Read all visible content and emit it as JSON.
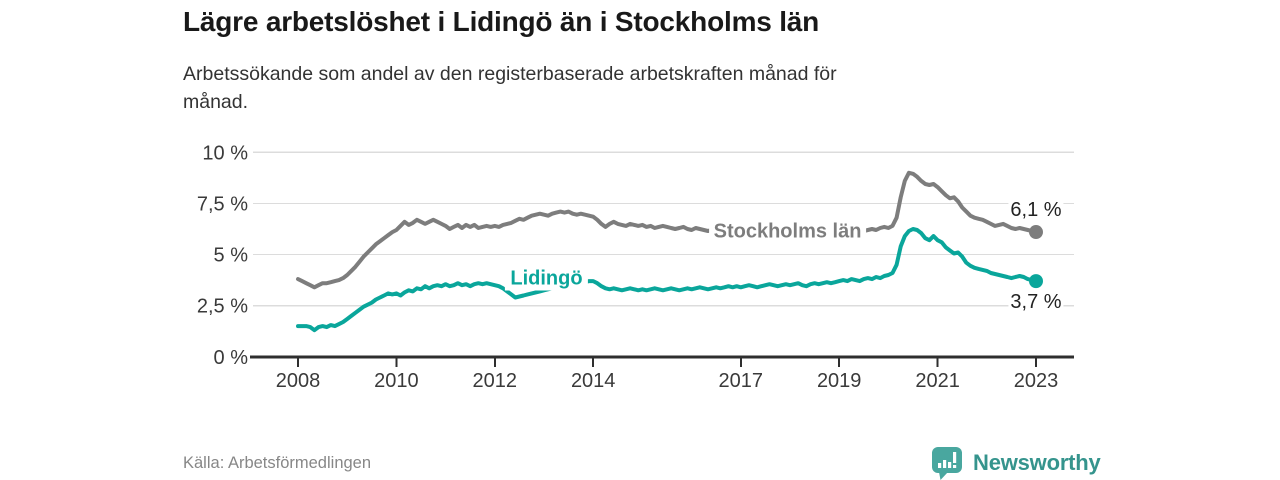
{
  "header": {
    "title": "Lägre arbetslöshet i Lidingö än i Stockholms län",
    "subtitle_lines": [
      "Arbetssökande som andel av den registerbaserade arbetskraften månad för",
      "månad."
    ]
  },
  "footer": {
    "source": "Källa: Arbetsförmedlingen",
    "brand_name": "Newsworthy",
    "brand_icon": "bar-chart-speech-bubble-icon"
  },
  "colors": {
    "lidingo_line": "#0aa69b",
    "stockholm_line": "#7d7d7d",
    "grid": "#dcdcdc",
    "axis": "#2f2f2f",
    "tick_text": "#3a3a3a",
    "annotation_text": "#222222",
    "logo_teal": "#49a79f",
    "wordmark_teal": "#35948d"
  },
  "chart_data": {
    "type": "line",
    "x_unit": "month",
    "x_start_year": 2008,
    "x_end_year": 2023,
    "xticks": [
      2008,
      2010,
      2012,
      2014,
      2017,
      2019,
      2021,
      2023
    ],
    "ytick_values": [
      0,
      2.5,
      5,
      7.5,
      10
    ],
    "ytick_labels": [
      "0 %",
      "2,5 %",
      "5 %",
      "7,5 %",
      "10 %"
    ],
    "ylim": [
      0,
      10
    ],
    "xlim": [
      2007.0,
      2023.8
    ],
    "grid": "horizontal",
    "legend_position": "inline-labels",
    "series": [
      {
        "name": "Stockholms län",
        "color": "#7d7d7d",
        "end_label": "6,1 %",
        "end_label_position": "above",
        "name_label_anchor": {
          "year": 2017.95,
          "value": 6.12
        },
        "values": [
          3.8,
          3.7,
          3.6,
          3.5,
          3.4,
          3.5,
          3.6,
          3.6,
          3.65,
          3.7,
          3.75,
          3.85,
          4.0,
          4.2,
          4.4,
          4.65,
          4.9,
          5.1,
          5.3,
          5.5,
          5.65,
          5.8,
          5.95,
          6.1,
          6.2,
          6.4,
          6.6,
          6.45,
          6.55,
          6.7,
          6.6,
          6.5,
          6.6,
          6.7,
          6.6,
          6.5,
          6.4,
          6.25,
          6.35,
          6.45,
          6.3,
          6.45,
          6.35,
          6.45,
          6.3,
          6.35,
          6.4,
          6.35,
          6.4,
          6.35,
          6.45,
          6.5,
          6.55,
          6.65,
          6.75,
          6.7,
          6.8,
          6.9,
          6.95,
          7.0,
          6.95,
          6.9,
          7.0,
          7.05,
          7.1,
          7.05,
          7.1,
          7.0,
          6.95,
          7.0,
          6.95,
          6.9,
          6.85,
          6.7,
          6.5,
          6.35,
          6.5,
          6.6,
          6.5,
          6.45,
          6.4,
          6.5,
          6.45,
          6.4,
          6.45,
          6.35,
          6.4,
          6.3,
          6.35,
          6.4,
          6.35,
          6.3,
          6.25,
          6.3,
          6.35,
          6.25,
          6.2,
          6.3,
          6.25,
          6.2,
          6.15,
          6.2,
          6.25,
          6.15,
          6.1,
          6.15,
          6.2,
          6.15,
          6.1,
          6.15,
          6.1,
          6.05,
          6.1,
          6.15,
          6.1,
          6.05,
          6.1,
          6.1,
          6.05,
          6.1,
          6.05,
          6.0,
          6.05,
          6.1,
          6.05,
          6.0,
          6.05,
          6.1,
          6.05,
          6.1,
          6.1,
          6.15,
          6.1,
          6.1,
          6.15,
          6.2,
          6.15,
          6.1,
          6.15,
          6.2,
          6.25,
          6.2,
          6.3,
          6.35,
          6.3,
          6.4,
          6.8,
          7.8,
          8.6,
          9.0,
          8.95,
          8.8,
          8.6,
          8.45,
          8.4,
          8.45,
          8.3,
          8.1,
          7.9,
          7.75,
          7.8,
          7.6,
          7.3,
          7.1,
          6.9,
          6.8,
          6.75,
          6.7,
          6.6,
          6.5,
          6.4,
          6.45,
          6.5,
          6.4,
          6.3,
          6.25,
          6.3,
          6.25,
          6.2,
          6.15,
          6.1
        ]
      },
      {
        "name": "Lidingö",
        "color": "#0aa69b",
        "end_label": "3,7 %",
        "end_label_position": "below",
        "name_label_anchor": {
          "year": 2013.05,
          "value": 3.82
        },
        "values": [
          1.5,
          1.5,
          1.5,
          1.45,
          1.3,
          1.45,
          1.5,
          1.45,
          1.55,
          1.5,
          1.6,
          1.7,
          1.85,
          2.0,
          2.15,
          2.3,
          2.45,
          2.55,
          2.65,
          2.8,
          2.9,
          3.0,
          3.1,
          3.05,
          3.1,
          3.0,
          3.15,
          3.25,
          3.2,
          3.35,
          3.3,
          3.45,
          3.35,
          3.45,
          3.5,
          3.45,
          3.55,
          3.45,
          3.5,
          3.6,
          3.5,
          3.55,
          3.45,
          3.55,
          3.6,
          3.55,
          3.6,
          3.55,
          3.5,
          3.45,
          3.35,
          3.2,
          3.05,
          2.9,
          2.95,
          3.0,
          3.05,
          3.1,
          3.15,
          3.2,
          3.25,
          3.3,
          3.35,
          3.4,
          3.45,
          3.5,
          3.55,
          3.6,
          3.6,
          3.65,
          3.65,
          3.7,
          3.7,
          3.6,
          3.45,
          3.35,
          3.3,
          3.35,
          3.3,
          3.25,
          3.3,
          3.35,
          3.3,
          3.25,
          3.3,
          3.25,
          3.3,
          3.35,
          3.3,
          3.25,
          3.3,
          3.35,
          3.3,
          3.25,
          3.3,
          3.35,
          3.3,
          3.35,
          3.4,
          3.35,
          3.3,
          3.35,
          3.4,
          3.35,
          3.4,
          3.45,
          3.4,
          3.45,
          3.4,
          3.45,
          3.5,
          3.45,
          3.4,
          3.45,
          3.5,
          3.55,
          3.5,
          3.45,
          3.5,
          3.55,
          3.5,
          3.55,
          3.6,
          3.5,
          3.45,
          3.55,
          3.6,
          3.55,
          3.6,
          3.65,
          3.6,
          3.65,
          3.7,
          3.75,
          3.7,
          3.8,
          3.75,
          3.7,
          3.8,
          3.85,
          3.8,
          3.9,
          3.85,
          3.95,
          4.0,
          4.1,
          4.5,
          5.4,
          5.9,
          6.15,
          6.25,
          6.2,
          6.05,
          5.8,
          5.7,
          5.9,
          5.7,
          5.6,
          5.35,
          5.2,
          5.05,
          5.1,
          4.9,
          4.6,
          4.45,
          4.35,
          4.3,
          4.25,
          4.2,
          4.1,
          4.05,
          4.0,
          3.95,
          3.9,
          3.85,
          3.9,
          3.95,
          3.9,
          3.8,
          3.75,
          3.7
        ]
      }
    ]
  }
}
